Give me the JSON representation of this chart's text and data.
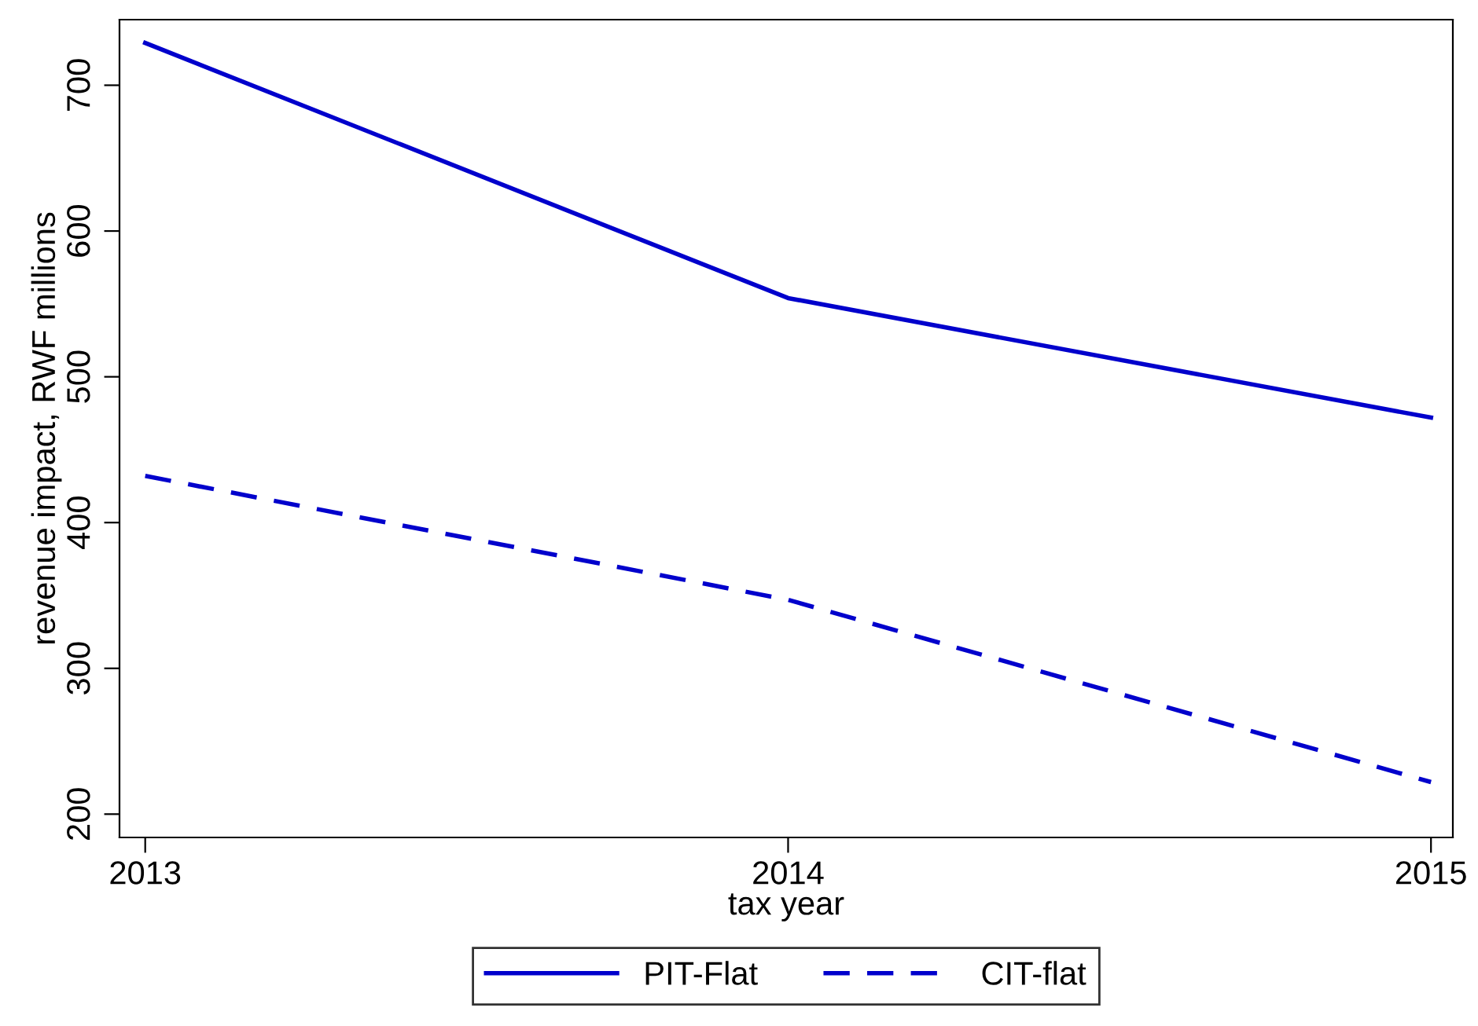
{
  "chart_data": {
    "type": "line",
    "xlabel": "tax year",
    "ylabel": "revenue impact, RWF millions",
    "x": [
      2013,
      2014,
      2015
    ],
    "series": [
      {
        "name": "PIT-Flat",
        "color": "#0000cc",
        "values": [
          729,
          554,
          472
        ],
        "line_style": "solid"
      },
      {
        "name": "CIT-flat",
        "color": "#0000cc",
        "values": [
          432,
          347,
          222
        ],
        "line_style": "dashed"
      }
    ],
    "xlim": [
      2012.96,
      2015.034
    ],
    "ylim": [
      184,
      745
    ],
    "xticks": [
      2013,
      2014,
      2015
    ],
    "yticks": [
      200,
      300,
      400,
      500,
      600,
      700
    ],
    "grid": false,
    "legend": "bottom",
    "marker": "none"
  }
}
